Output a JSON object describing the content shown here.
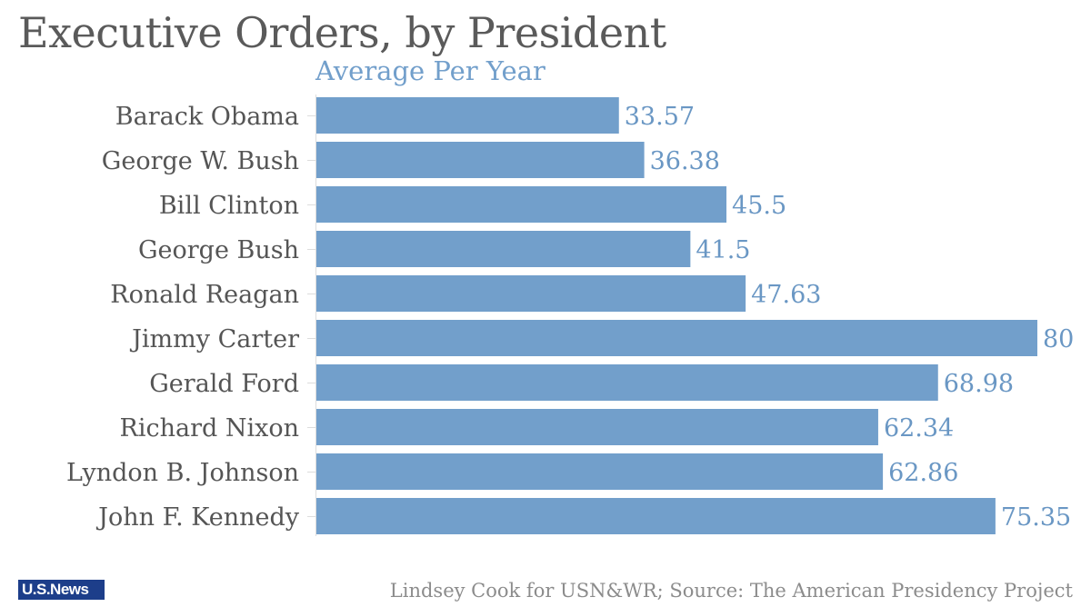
{
  "title": "Executive Orders, by President",
  "subtitle": "Average Per Year",
  "footer": {
    "logo_text": "U.S.News",
    "credit": "Lindsey Cook for USN&WR; Source: The American Presidency Project"
  },
  "colors": {
    "bar": "#729fcb",
    "value_label": "#6a97c4",
    "subtitle": "#729fcb",
    "title": "#5a5a5a",
    "logo_bg": "#1d3e8a"
  },
  "chart_data": {
    "type": "bar",
    "orientation": "horizontal",
    "title": "Executive Orders, by President",
    "subtitle": "Average Per Year",
    "categories": [
      "Barack Obama",
      "George W. Bush",
      "Bill Clinton",
      "George Bush",
      "Ronald Reagan",
      "Jimmy Carter",
      "Gerald Ford",
      "Richard Nixon",
      "Lyndon B. Johnson",
      "John F. Kennedy"
    ],
    "values": [
      33.57,
      36.38,
      45.5,
      41.5,
      47.63,
      80,
      68.98,
      62.34,
      62.86,
      75.35
    ],
    "value_labels": [
      "33.57",
      "36.38",
      "45.5",
      "41.5",
      "47.63",
      "80",
      "68.98",
      "62.34",
      "62.86",
      "75.35"
    ],
    "xlim": [
      0,
      80
    ],
    "grid": false,
    "legend": "none"
  }
}
